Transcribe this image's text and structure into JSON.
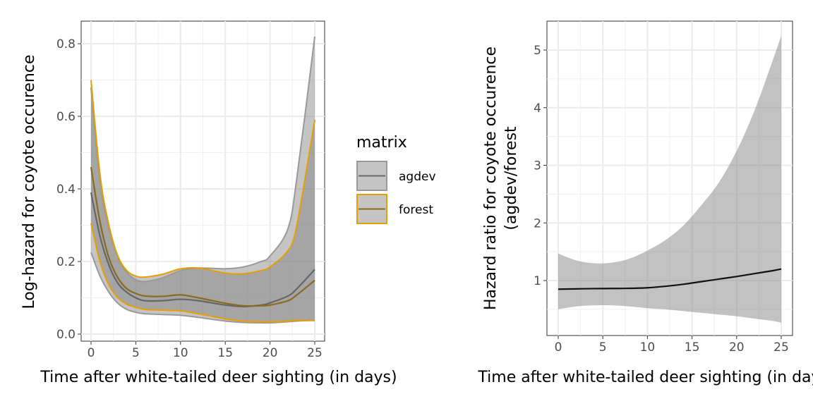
{
  "chart_data": [
    {
      "type": "line",
      "ylabel": "Log-hazard for coyote occurence",
      "xlabel": "Time after white-tailed deer sighting (in days)",
      "xlim": [
        -1,
        26
      ],
      "ylim": [
        -0.02,
        0.86
      ],
      "xticks": [
        "0",
        "5",
        "10",
        "15",
        "20",
        "25"
      ],
      "yticks": [
        "0.0",
        "0.2",
        "0.4",
        "0.6",
        "0.8"
      ],
      "grid": true,
      "legend": {
        "title": "matrix",
        "placement": "right",
        "entries": [
          "agdev",
          "forest"
        ]
      },
      "colors": {
        "agdev": "#999999",
        "forest": "#E69F00",
        "ribbon": "#7f7f7f"
      },
      "series": [
        {
          "name": "agdev",
          "x": [
            0,
            1,
            2,
            3,
            4,
            5,
            6,
            8,
            10,
            12,
            15,
            17,
            19,
            20,
            22,
            23,
            25
          ],
          "mean": [
            0.39,
            0.27,
            0.19,
            0.14,
            0.115,
            0.1,
            0.092,
            0.092,
            0.096,
            0.092,
            0.08,
            0.076,
            0.08,
            0.086,
            0.105,
            0.125,
            0.178
          ],
          "upper": [
            0.68,
            0.42,
            0.29,
            0.21,
            0.17,
            0.15,
            0.145,
            0.155,
            0.175,
            0.182,
            0.18,
            0.185,
            0.2,
            0.215,
            0.29,
            0.43,
            0.82
          ],
          "lower": [
            0.225,
            0.16,
            0.115,
            0.085,
            0.068,
            0.06,
            0.056,
            0.054,
            0.052,
            0.046,
            0.036,
            0.032,
            0.031,
            0.031,
            0.034,
            0.036,
            0.038
          ]
        },
        {
          "name": "forest",
          "x": [
            0,
            1,
            2,
            3,
            4,
            5,
            6,
            8,
            10,
            12,
            15,
            17,
            19,
            20,
            22,
            23,
            25
          ],
          "mean": [
            0.46,
            0.31,
            0.21,
            0.155,
            0.125,
            0.112,
            0.105,
            0.104,
            0.108,
            0.1,
            0.085,
            0.078,
            0.078,
            0.08,
            0.092,
            0.108,
            0.148
          ],
          "upper": [
            0.7,
            0.44,
            0.3,
            0.215,
            0.175,
            0.16,
            0.157,
            0.165,
            0.18,
            0.182,
            0.168,
            0.166,
            0.175,
            0.185,
            0.23,
            0.3,
            0.59
          ],
          "lower": [
            0.305,
            0.2,
            0.135,
            0.1,
            0.082,
            0.074,
            0.068,
            0.066,
            0.064,
            0.056,
            0.042,
            0.036,
            0.034,
            0.034,
            0.036,
            0.038,
            0.037
          ]
        }
      ]
    },
    {
      "type": "line",
      "ylabel": "Hazard ratio for coyote occurence\n(agdev/forest",
      "ylabel_lines": [
        "Hazard ratio for coyote occurence",
        "(agdev/forest"
      ],
      "xlabel": "Time after white-tailed deer sighting (in days)",
      "xlim": [
        -1,
        26
      ],
      "ylim": [
        0.05,
        5.5
      ],
      "xticks": [
        "0",
        "5",
        "10",
        "15",
        "20",
        "25"
      ],
      "yticks": [
        "1",
        "2",
        "3",
        "4",
        "5"
      ],
      "grid": true,
      "series": [
        {
          "name": "hazard ratio",
          "x": [
            0,
            2,
            4,
            6,
            8,
            10,
            12,
            14,
            16,
            18,
            20,
            22,
            24,
            25
          ],
          "mean": [
            0.85,
            0.855,
            0.86,
            0.862,
            0.865,
            0.875,
            0.9,
            0.935,
            0.98,
            1.025,
            1.07,
            1.12,
            1.17,
            1.2
          ],
          "upper": [
            1.47,
            1.35,
            1.3,
            1.31,
            1.38,
            1.52,
            1.7,
            1.95,
            2.3,
            2.7,
            3.25,
            3.95,
            4.8,
            5.25
          ],
          "lower": [
            0.5,
            0.55,
            0.57,
            0.57,
            0.55,
            0.52,
            0.5,
            0.47,
            0.44,
            0.41,
            0.38,
            0.34,
            0.3,
            0.27
          ]
        }
      ]
    }
  ]
}
